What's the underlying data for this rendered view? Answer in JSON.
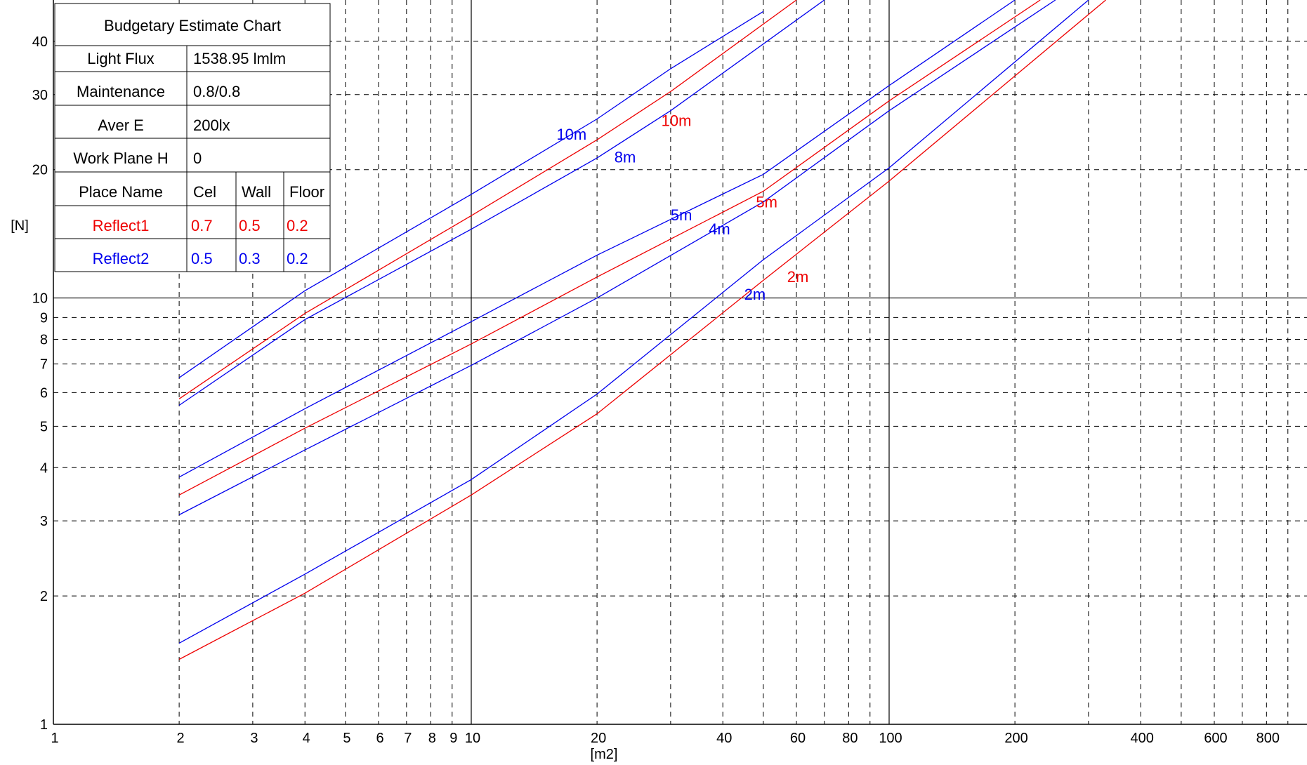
{
  "chart_data": {
    "type": "line",
    "x_scale": "log",
    "y_scale": "log",
    "xlabel": "[m2]",
    "ylabel": "[N]",
    "xlim": [
      1,
      1000
    ],
    "ylim": [
      1,
      50
    ],
    "x_ticks": [
      1,
      2,
      3,
      4,
      5,
      6,
      7,
      8,
      9,
      10,
      20,
      40,
      60,
      80,
      100,
      200,
      400,
      600,
      800
    ],
    "x_tick_labels": [
      "1",
      "2",
      "3",
      "4",
      "5",
      "6",
      "7",
      "8",
      "9",
      "10",
      "20",
      "40",
      "60",
      "80",
      "100",
      "200",
      "400",
      "600",
      "800"
    ],
    "x_grid": [
      2,
      3,
      4,
      5,
      6,
      7,
      8,
      9,
      20,
      30,
      40,
      50,
      60,
      70,
      80,
      90,
      200,
      300,
      400,
      500,
      600,
      700,
      800,
      900
    ],
    "x_major": [
      10,
      100
    ],
    "y_ticks": [
      1,
      2,
      3,
      4,
      5,
      6,
      7,
      8,
      9,
      10,
      20,
      30,
      40
    ],
    "y_tick_labels": [
      "1",
      "2",
      "3",
      "4",
      "5",
      "6",
      "7",
      "8",
      "9",
      "10",
      "20",
      "30",
      "40"
    ],
    "y_grid": [
      2,
      3,
      4,
      5,
      6,
      7,
      8,
      9,
      20,
      30,
      40
    ],
    "y_major": [
      10
    ],
    "grid": true,
    "series": [
      {
        "label": "10m",
        "color": "#0000ee",
        "points": [
          [
            2,
            6.5
          ],
          [
            4,
            10.4
          ],
          [
            10,
            17.5
          ],
          [
            20,
            26.3
          ],
          [
            30,
            34.5
          ],
          [
            50,
            47
          ]
        ]
      },
      {
        "label": "10m",
        "color": "#ee0000",
        "points": [
          [
            2,
            5.8
          ],
          [
            4,
            9.2
          ],
          [
            10,
            15.6
          ],
          [
            20,
            23.5
          ],
          [
            30,
            30.5
          ],
          [
            60,
            50
          ]
        ]
      },
      {
        "label": "8m",
        "color": "#0000ee",
        "points": [
          [
            2,
            5.6
          ],
          [
            4,
            8.9
          ],
          [
            10,
            14.5
          ],
          [
            20,
            21.3
          ],
          [
            30,
            27.5
          ],
          [
            70,
            50
          ]
        ]
      },
      {
        "label": "5m",
        "color": "#0000ee",
        "points": [
          [
            2,
            3.8
          ],
          [
            4,
            5.5
          ],
          [
            10,
            8.8
          ],
          [
            20,
            12.6
          ],
          [
            50,
            19.5
          ],
          [
            100,
            31.5
          ],
          [
            200,
            50
          ]
        ]
      },
      {
        "label": "5m",
        "color": "#ee0000",
        "points": [
          [
            2,
            3.45
          ],
          [
            4,
            4.95
          ],
          [
            10,
            7.8
          ],
          [
            20,
            11.2
          ],
          [
            50,
            17.8
          ],
          [
            100,
            29
          ],
          [
            230,
            50
          ]
        ]
      },
      {
        "label": "4m",
        "color": "#0000ee",
        "points": [
          [
            2,
            3.1
          ],
          [
            4,
            4.4
          ],
          [
            10,
            6.95
          ],
          [
            20,
            10
          ],
          [
            50,
            16.8
          ],
          [
            100,
            27.5
          ],
          [
            250,
            50
          ]
        ]
      },
      {
        "label": "2m",
        "color": "#0000ee",
        "points": [
          [
            2,
            1.55
          ],
          [
            4,
            2.25
          ],
          [
            10,
            3.75
          ],
          [
            20,
            5.95
          ],
          [
            50,
            12.3
          ],
          [
            100,
            20.2
          ],
          [
            300,
            50
          ]
        ]
      },
      {
        "label": "2m",
        "color": "#ee0000",
        "points": [
          [
            2,
            1.42
          ],
          [
            4,
            2.03
          ],
          [
            10,
            3.45
          ],
          [
            20,
            5.35
          ],
          [
            50,
            11
          ],
          [
            100,
            18.8
          ],
          [
            330,
            50
          ]
        ]
      }
    ],
    "curve_labels": [
      {
        "text": "10m",
        "color": "#0000ee",
        "x": 16,
        "y": 23.5
      },
      {
        "text": "10m",
        "color": "#ee0000",
        "x": 28.5,
        "y": 25.3
      },
      {
        "text": "8m",
        "color": "#0000ee",
        "x": 22,
        "y": 20.8
      },
      {
        "text": "5m",
        "color": "#0000ee",
        "x": 30,
        "y": 15.2
      },
      {
        "text": "5m",
        "color": "#ee0000",
        "x": 48,
        "y": 16.3
      },
      {
        "text": "4m",
        "color": "#0000ee",
        "x": 37,
        "y": 14.1
      },
      {
        "text": "2m",
        "color": "#0000ee",
        "x": 45,
        "y": 9.9
      },
      {
        "text": "2m",
        "color": "#ee0000",
        "x": 57,
        "y": 10.9
      }
    ]
  },
  "info_table": {
    "title": "Budgetary Estimate Chart",
    "rows": [
      {
        "label": "Light Flux",
        "value": "1538.95 lmlm"
      },
      {
        "label": "Maintenance",
        "value": "0.8/0.8"
      },
      {
        "label": "Aver E",
        "value": "200lx"
      },
      {
        "label": "Work Plane H",
        "value": "0"
      }
    ],
    "header": {
      "name": "Place Name",
      "c1": "Cel",
      "c2": "Wall",
      "c3": "Floor"
    },
    "reflect": [
      {
        "name": "Reflect1",
        "c1": "0.7",
        "c2": "0.5",
        "c3": "0.2",
        "color": "#ee0000"
      },
      {
        "name": "Reflect2",
        "c1": "0.5",
        "c2": "0.3",
        "c3": "0.2",
        "color": "#0000ee"
      }
    ]
  }
}
